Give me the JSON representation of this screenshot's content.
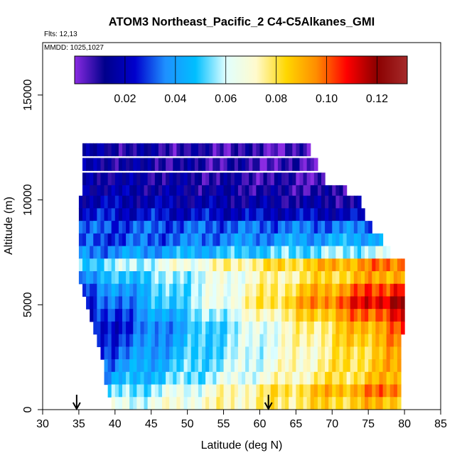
{
  "chart_data": {
    "type": "heatmap",
    "title": "ATOM3 Northeast_Pacific_2 C4-C5Alkanes_GMI",
    "flights_label": "Flts: 12,13",
    "dates_label": "MMDD: 1025,1027",
    "xlabel": "Latitude (deg N)",
    "ylabel": "Altitude (m)",
    "xlim": [
      30,
      85
    ],
    "ylim": [
      0,
      17500
    ],
    "x_ticks": [
      "30",
      "35",
      "40",
      "45",
      "50",
      "55",
      "60",
      "65",
      "70",
      "75",
      "80",
      "85"
    ],
    "y_ticks": [
      "0",
      "5000",
      "10000",
      "15000"
    ],
    "colorbar": {
      "range": [
        0,
        0.132
      ],
      "ticks": [
        "0.02",
        "0.04",
        "0.06",
        "0.08",
        "0.10",
        "0.12"
      ],
      "stops": [
        "#8a2be2",
        "#00008b",
        "#0000cd",
        "#1e90ff",
        "#00bfff",
        "#e0ffff",
        "#fffacd",
        "#ffd700",
        "#ff8c00",
        "#ff0000",
        "#8b0000",
        "#a52a2a"
      ]
    },
    "arrows_latitude": [
      34.7,
      61.2
    ],
    "bands": [
      {
        "alt": 12400,
        "lat0": 35.5,
        "lat1": 67,
        "v0": 0.014,
        "v1": 0.004
      },
      {
        "alt": 11700,
        "lat0": 35.5,
        "lat1": 68,
        "v0": 0.015,
        "v1": 0.005
      },
      {
        "alt": 11000,
        "lat0": 35.5,
        "lat1": 69,
        "v0": 0.016,
        "v1": 0.006
      },
      {
        "alt": 10400,
        "lat0": 35.5,
        "lat1": 72,
        "v0": 0.018,
        "v1": 0.008
      },
      {
        "alt": 9900,
        "lat0": 35,
        "lat1": 74,
        "v0": 0.02,
        "v1": 0.012
      },
      {
        "alt": 9300,
        "lat0": 35,
        "lat1": 74.5,
        "v0": 0.024,
        "v1": 0.02
      },
      {
        "alt": 8700,
        "lat0": 35,
        "lat1": 75.5,
        "v0": 0.03,
        "v1": 0.035
      },
      {
        "alt": 8100,
        "lat0": 35,
        "lat1": 77,
        "v0": 0.028,
        "v1": 0.045
      },
      {
        "alt": 7500,
        "lat0": 35,
        "lat1": 78,
        "v0": 0.035,
        "v1": 0.06
      },
      {
        "alt": 6900,
        "lat0": 35,
        "lat1": 80,
        "v0": 0.05,
        "v1": 0.1
      },
      {
        "alt": 6300,
        "lat0": 35,
        "lat1": 80,
        "v0": 0.04,
        "v1": 0.095
      },
      {
        "alt": 5700,
        "lat0": 35.5,
        "lat1": 80,
        "v0": 0.03,
        "v1": 0.11
      },
      {
        "alt": 5100,
        "lat0": 36,
        "lat1": 80,
        "v0": 0.025,
        "v1": 0.12
      },
      {
        "alt": 4500,
        "lat0": 36.5,
        "lat1": 80,
        "v0": 0.022,
        "v1": 0.11
      },
      {
        "alt": 3900,
        "lat0": 37,
        "lat1": 80,
        "v0": 0.02,
        "v1": 0.1
      },
      {
        "alt": 3300,
        "lat0": 37.5,
        "lat1": 79.5,
        "v0": 0.025,
        "v1": 0.095
      },
      {
        "alt": 2700,
        "lat0": 38,
        "lat1": 79.5,
        "v0": 0.03,
        "v1": 0.09
      },
      {
        "alt": 2100,
        "lat0": 38.5,
        "lat1": 79.5,
        "v0": 0.035,
        "v1": 0.09
      },
      {
        "alt": 1500,
        "lat0": 38.5,
        "lat1": 79.5,
        "v0": 0.04,
        "v1": 0.09
      },
      {
        "alt": 900,
        "lat0": 39,
        "lat1": 79.5,
        "v0": 0.05,
        "v1": 0.1
      },
      {
        "alt": 300,
        "lat0": 39.5,
        "lat1": 79.5,
        "v0": 0.06,
        "v1": 0.09
      }
    ]
  }
}
